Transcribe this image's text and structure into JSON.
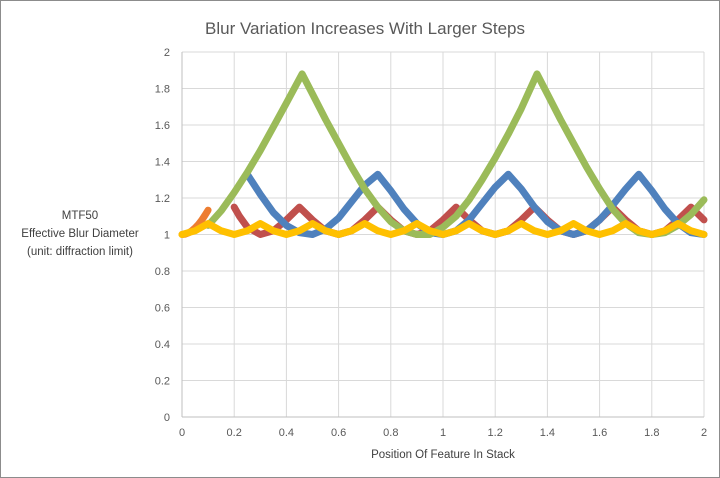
{
  "chart_data": {
    "type": "line",
    "title": "Blur Variation Increases With Larger Steps",
    "xlabel": "Position Of Feature In Stack",
    "ylabel_lines": [
      "MTF50",
      "Effective Blur Diameter",
      "(unit: diffraction limit)"
    ],
    "xlim": [
      0,
      2
    ],
    "ylim": [
      0,
      2
    ],
    "x_ticks": [
      "0",
      "0.2",
      "0.4",
      "0.6",
      "0.8",
      "1",
      "1.2",
      "1.4",
      "1.6",
      "1.8",
      "2"
    ],
    "y_ticks": [
      "0",
      "0.2",
      "0.4",
      "0.6",
      "0.8",
      "1",
      "1.2",
      "1.4",
      "1.6",
      "1.8",
      "2"
    ],
    "grid": true,
    "legend": "none",
    "series": [
      {
        "color": "#ED7D31",
        "x": [
          0,
          0.0125,
          0.025,
          0.0375,
          0.05,
          0.0625,
          0.075,
          0.0875,
          0.1
        ],
        "y": [
          1.0,
          1.002,
          1.009,
          1.02,
          1.036,
          1.055,
          1.078,
          1.104,
          1.133
        ]
      },
      {
        "color": "#C0504D",
        "x": [
          0.2,
          0.22,
          0.25,
          0.3,
          0.35,
          0.4,
          0.45,
          0.5,
          0.55,
          0.6,
          0.65,
          0.7,
          0.75,
          0.8,
          0.85,
          0.9,
          0.95,
          1.0,
          1.05,
          1.1,
          1.15,
          1.2,
          1.25,
          1.3,
          1.35,
          1.4,
          1.45,
          1.5,
          1.55,
          1.6,
          1.65,
          1.7,
          1.75,
          1.8,
          1.85,
          1.9,
          1.95,
          2.0
        ],
        "y": [
          1.15,
          1.1,
          1.04,
          1.0,
          1.02,
          1.08,
          1.15,
          1.08,
          1.02,
          1.0,
          1.02,
          1.08,
          1.15,
          1.08,
          1.02,
          1.0,
          1.02,
          1.08,
          1.15,
          1.08,
          1.02,
          1.0,
          1.02,
          1.08,
          1.15,
          1.08,
          1.02,
          1.0,
          1.02,
          1.08,
          1.15,
          1.08,
          1.02,
          1.0,
          1.02,
          1.08,
          1.15,
          1.08
        ]
      },
      {
        "color": "#4F81BD",
        "x": [
          0.25,
          0.3,
          0.35,
          0.4,
          0.45,
          0.5,
          0.55,
          0.6,
          0.65,
          0.7,
          0.75,
          0.8,
          0.85,
          0.9,
          0.95,
          1.0,
          1.05,
          1.1,
          1.15,
          1.2,
          1.25,
          1.3,
          1.35,
          1.4,
          1.45,
          1.5,
          1.55,
          1.6,
          1.65,
          1.7,
          1.75,
          1.8,
          1.85,
          1.9,
          1.95,
          2.0
        ],
        "y": [
          1.33,
          1.22,
          1.12,
          1.05,
          1.01,
          1.0,
          1.03,
          1.09,
          1.18,
          1.27,
          1.33,
          1.24,
          1.14,
          1.06,
          1.01,
          1.0,
          1.02,
          1.08,
          1.17,
          1.26,
          1.33,
          1.25,
          1.15,
          1.07,
          1.02,
          1.0,
          1.02,
          1.08,
          1.16,
          1.25,
          1.33,
          1.24,
          1.14,
          1.06,
          1.01,
          1.0
        ]
      },
      {
        "color": "#9BBB59",
        "x": [
          0.1,
          0.15,
          0.2,
          0.25,
          0.3,
          0.35,
          0.4,
          0.46,
          0.5,
          0.55,
          0.6,
          0.65,
          0.7,
          0.75,
          0.8,
          0.85,
          0.9,
          0.95,
          1.0,
          1.05,
          1.1,
          1.15,
          1.2,
          1.25,
          1.3,
          1.36,
          1.4,
          1.45,
          1.5,
          1.55,
          1.6,
          1.65,
          1.7,
          1.75,
          1.8,
          1.85,
          1.9,
          1.95,
          2.0
        ],
        "y": [
          1.05,
          1.13,
          1.23,
          1.34,
          1.46,
          1.59,
          1.72,
          1.88,
          1.77,
          1.63,
          1.5,
          1.37,
          1.25,
          1.15,
          1.07,
          1.02,
          1.0,
          1.0,
          1.04,
          1.1,
          1.19,
          1.3,
          1.42,
          1.55,
          1.69,
          1.88,
          1.77,
          1.63,
          1.5,
          1.37,
          1.25,
          1.14,
          1.06,
          1.01,
          1.0,
          1.01,
          1.05,
          1.11,
          1.19
        ]
      },
      {
        "color": "#FFC000",
        "x": [
          0,
          0.05,
          0.1,
          0.15,
          0.2,
          0.25,
          0.3,
          0.35,
          0.4,
          0.45,
          0.5,
          0.55,
          0.6,
          0.65,
          0.7,
          0.75,
          0.8,
          0.85,
          0.9,
          0.95,
          1.0,
          1.05,
          1.1,
          1.15,
          1.2,
          1.25,
          1.3,
          1.35,
          1.4,
          1.45,
          1.5,
          1.55,
          1.6,
          1.65,
          1.7,
          1.75,
          1.8,
          1.85,
          1.9,
          1.95,
          2.0
        ],
        "y": [
          1.0,
          1.02,
          1.06,
          1.02,
          1.0,
          1.02,
          1.06,
          1.02,
          1.0,
          1.02,
          1.06,
          1.02,
          1.0,
          1.02,
          1.06,
          1.02,
          1.0,
          1.02,
          1.06,
          1.02,
          1.0,
          1.02,
          1.06,
          1.02,
          1.0,
          1.02,
          1.06,
          1.02,
          1.0,
          1.02,
          1.06,
          1.02,
          1.0,
          1.02,
          1.06,
          1.02,
          1.0,
          1.02,
          1.06,
          1.02,
          1.0
        ]
      }
    ]
  }
}
